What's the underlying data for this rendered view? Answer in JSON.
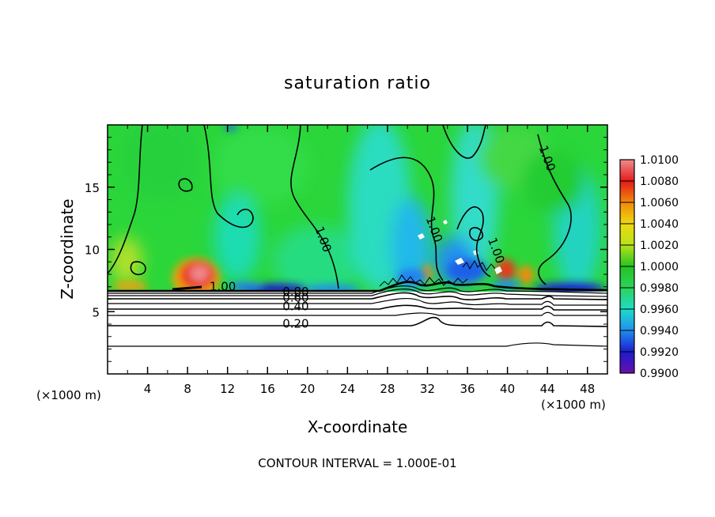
{
  "chart_data": {
    "type": "heatmap",
    "title": "saturation ratio",
    "xlabel": "X-coordinate",
    "ylabel": "Z-coordinate",
    "x_unit_left": "(×1000 m)",
    "x_unit_right": "(×1000 m)",
    "footer": "CONTOUR INTERVAL = 1.000E-01",
    "xlim": [
      0,
      50
    ],
    "ylim": [
      0,
      20
    ],
    "x_ticks": [
      4,
      8,
      12,
      16,
      20,
      24,
      28,
      32,
      36,
      40,
      44,
      48
    ],
    "y_ticks": [
      5,
      10,
      15
    ],
    "colorbar": {
      "levels": [
        "0.9900",
        "0.9920",
        "0.9940",
        "0.9960",
        "0.9980",
        "1.0000",
        "1.0020",
        "1.0040",
        "1.0060",
        "1.0080",
        "1.0100"
      ],
      "colors": [
        "#6a0fa8",
        "#1c1ccf",
        "#1f8ef0",
        "#1fdcc8",
        "#2cd35a",
        "#22c422",
        "#b8e21a",
        "#f0d90f",
        "#f08a0a",
        "#e41a1a",
        "#f08a8a"
      ]
    },
    "contour_labels": [
      {
        "text": "1.00",
        "x": 10.2,
        "y": 6.7
      },
      {
        "text": "0.80",
        "x": 17.5,
        "y": 6.3
      },
      {
        "text": "0.60",
        "x": 17.5,
        "y": 5.8
      },
      {
        "text": "0.40",
        "x": 17.5,
        "y": 5.1
      },
      {
        "text": "0.20",
        "x": 17.5,
        "y": 3.7
      },
      {
        "text": "1.00",
        "x": 21.2,
        "y": 10.7
      },
      {
        "text": "1.00",
        "x": 43.6,
        "y": 17.2
      },
      {
        "text": "1.00",
        "x": 32.3,
        "y": 11.5
      },
      {
        "text": "1.00",
        "x": 38.5,
        "y": 9.8
      }
    ],
    "contour_levels": [
      0.2,
      0.4,
      0.6,
      0.8,
      1.0
    ]
  }
}
